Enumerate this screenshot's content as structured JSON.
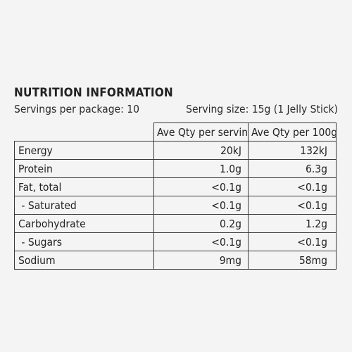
{
  "title": "NUTRITION INFORMATION",
  "servings_per_package": "Servings per package: 10",
  "serving_size": "Serving size: 15g (1 Jelly Stick)",
  "columns": [
    "Ave Qty per serving",
    "Ave Qty per 100g"
  ],
  "rows": [
    {
      "label": "Energy",
      "per_serving": "20kJ",
      "per_100g": "132kJ"
    },
    {
      "label": "Protein",
      "per_serving": "1.0g",
      "per_100g": "6.3g"
    },
    {
      "label": "Fat, total",
      "per_serving": "<0.1g",
      "per_100g": "<0.1g"
    },
    {
      "label": " - Saturated",
      "per_serving": "<0.1g",
      "per_100g": "<0.1g"
    },
    {
      "label": "Carbohydrate",
      "per_serving": "0.2g",
      "per_100g": "1.2g"
    },
    {
      "label": " - Sugars",
      "per_serving": "<0.1g",
      "per_100g": "<0.1g"
    },
    {
      "label": "Sodium",
      "per_serving": "9mg",
      "per_100g": "58mg"
    }
  ]
}
